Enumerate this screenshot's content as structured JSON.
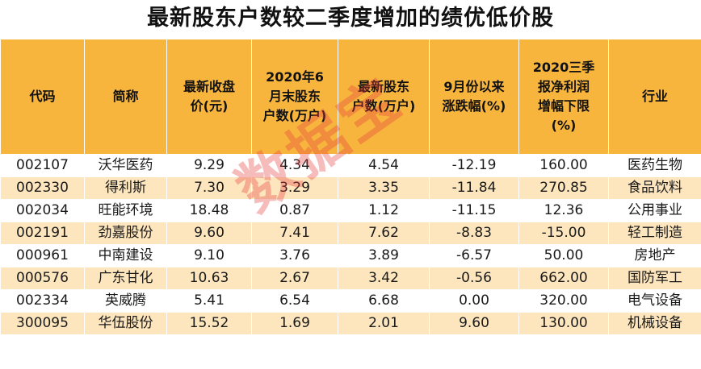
{
  "title": "最新股东户数较二季度增加的绩优低价股",
  "watermark": "数据宝",
  "columns": [
    {
      "lines": [
        "代码"
      ]
    },
    {
      "lines": [
        "简称"
      ]
    },
    {
      "lines": [
        "最新收盘",
        "价(元)"
      ]
    },
    {
      "lines": [
        "2020年6",
        "月末股东",
        "户数(万户)"
      ]
    },
    {
      "lines": [
        "最新股东",
        "户数(万户)"
      ]
    },
    {
      "lines": [
        "9月份以来",
        "涨跌幅(%)"
      ]
    },
    {
      "lines": [
        "2020三季",
        "报净利润",
        "增幅下限",
        "(%)"
      ]
    },
    {
      "lines": [
        "行业"
      ]
    }
  ],
  "rows": [
    [
      "002107",
      "沃华医药",
      "9.29",
      "4.34",
      "4.54",
      "-12.19",
      "160.00",
      "医药生物"
    ],
    [
      "002330",
      "得利斯",
      "7.30",
      "3.29",
      "3.35",
      "-11.84",
      "270.85",
      "食品饮料"
    ],
    [
      "002034",
      "旺能环境",
      "18.48",
      "0.87",
      "1.12",
      "-11.15",
      "12.36",
      "公用事业"
    ],
    [
      "002191",
      "劲嘉股份",
      "9.60",
      "7.41",
      "7.62",
      "-8.83",
      "-15.00",
      "轻工制造"
    ],
    [
      "000961",
      "中南建设",
      "9.10",
      "3.76",
      "3.89",
      "-6.57",
      "50.00",
      "房地产"
    ],
    [
      "000576",
      "广东甘化",
      "10.63",
      "2.67",
      "3.42",
      "-0.56",
      "662.00",
      "国防军工"
    ],
    [
      "002334",
      "英威腾",
      "5.41",
      "6.54",
      "6.68",
      "0.00",
      "320.00",
      "电气设备"
    ],
    [
      "300095",
      "华伍股份",
      "15.52",
      "1.69",
      "2.01",
      "9.60",
      "130.00",
      "机械设备"
    ]
  ],
  "colors": {
    "header_bg": "#f7b53e",
    "alt_row_bg": "#fde6bd",
    "watermark": "#e63c3c"
  }
}
